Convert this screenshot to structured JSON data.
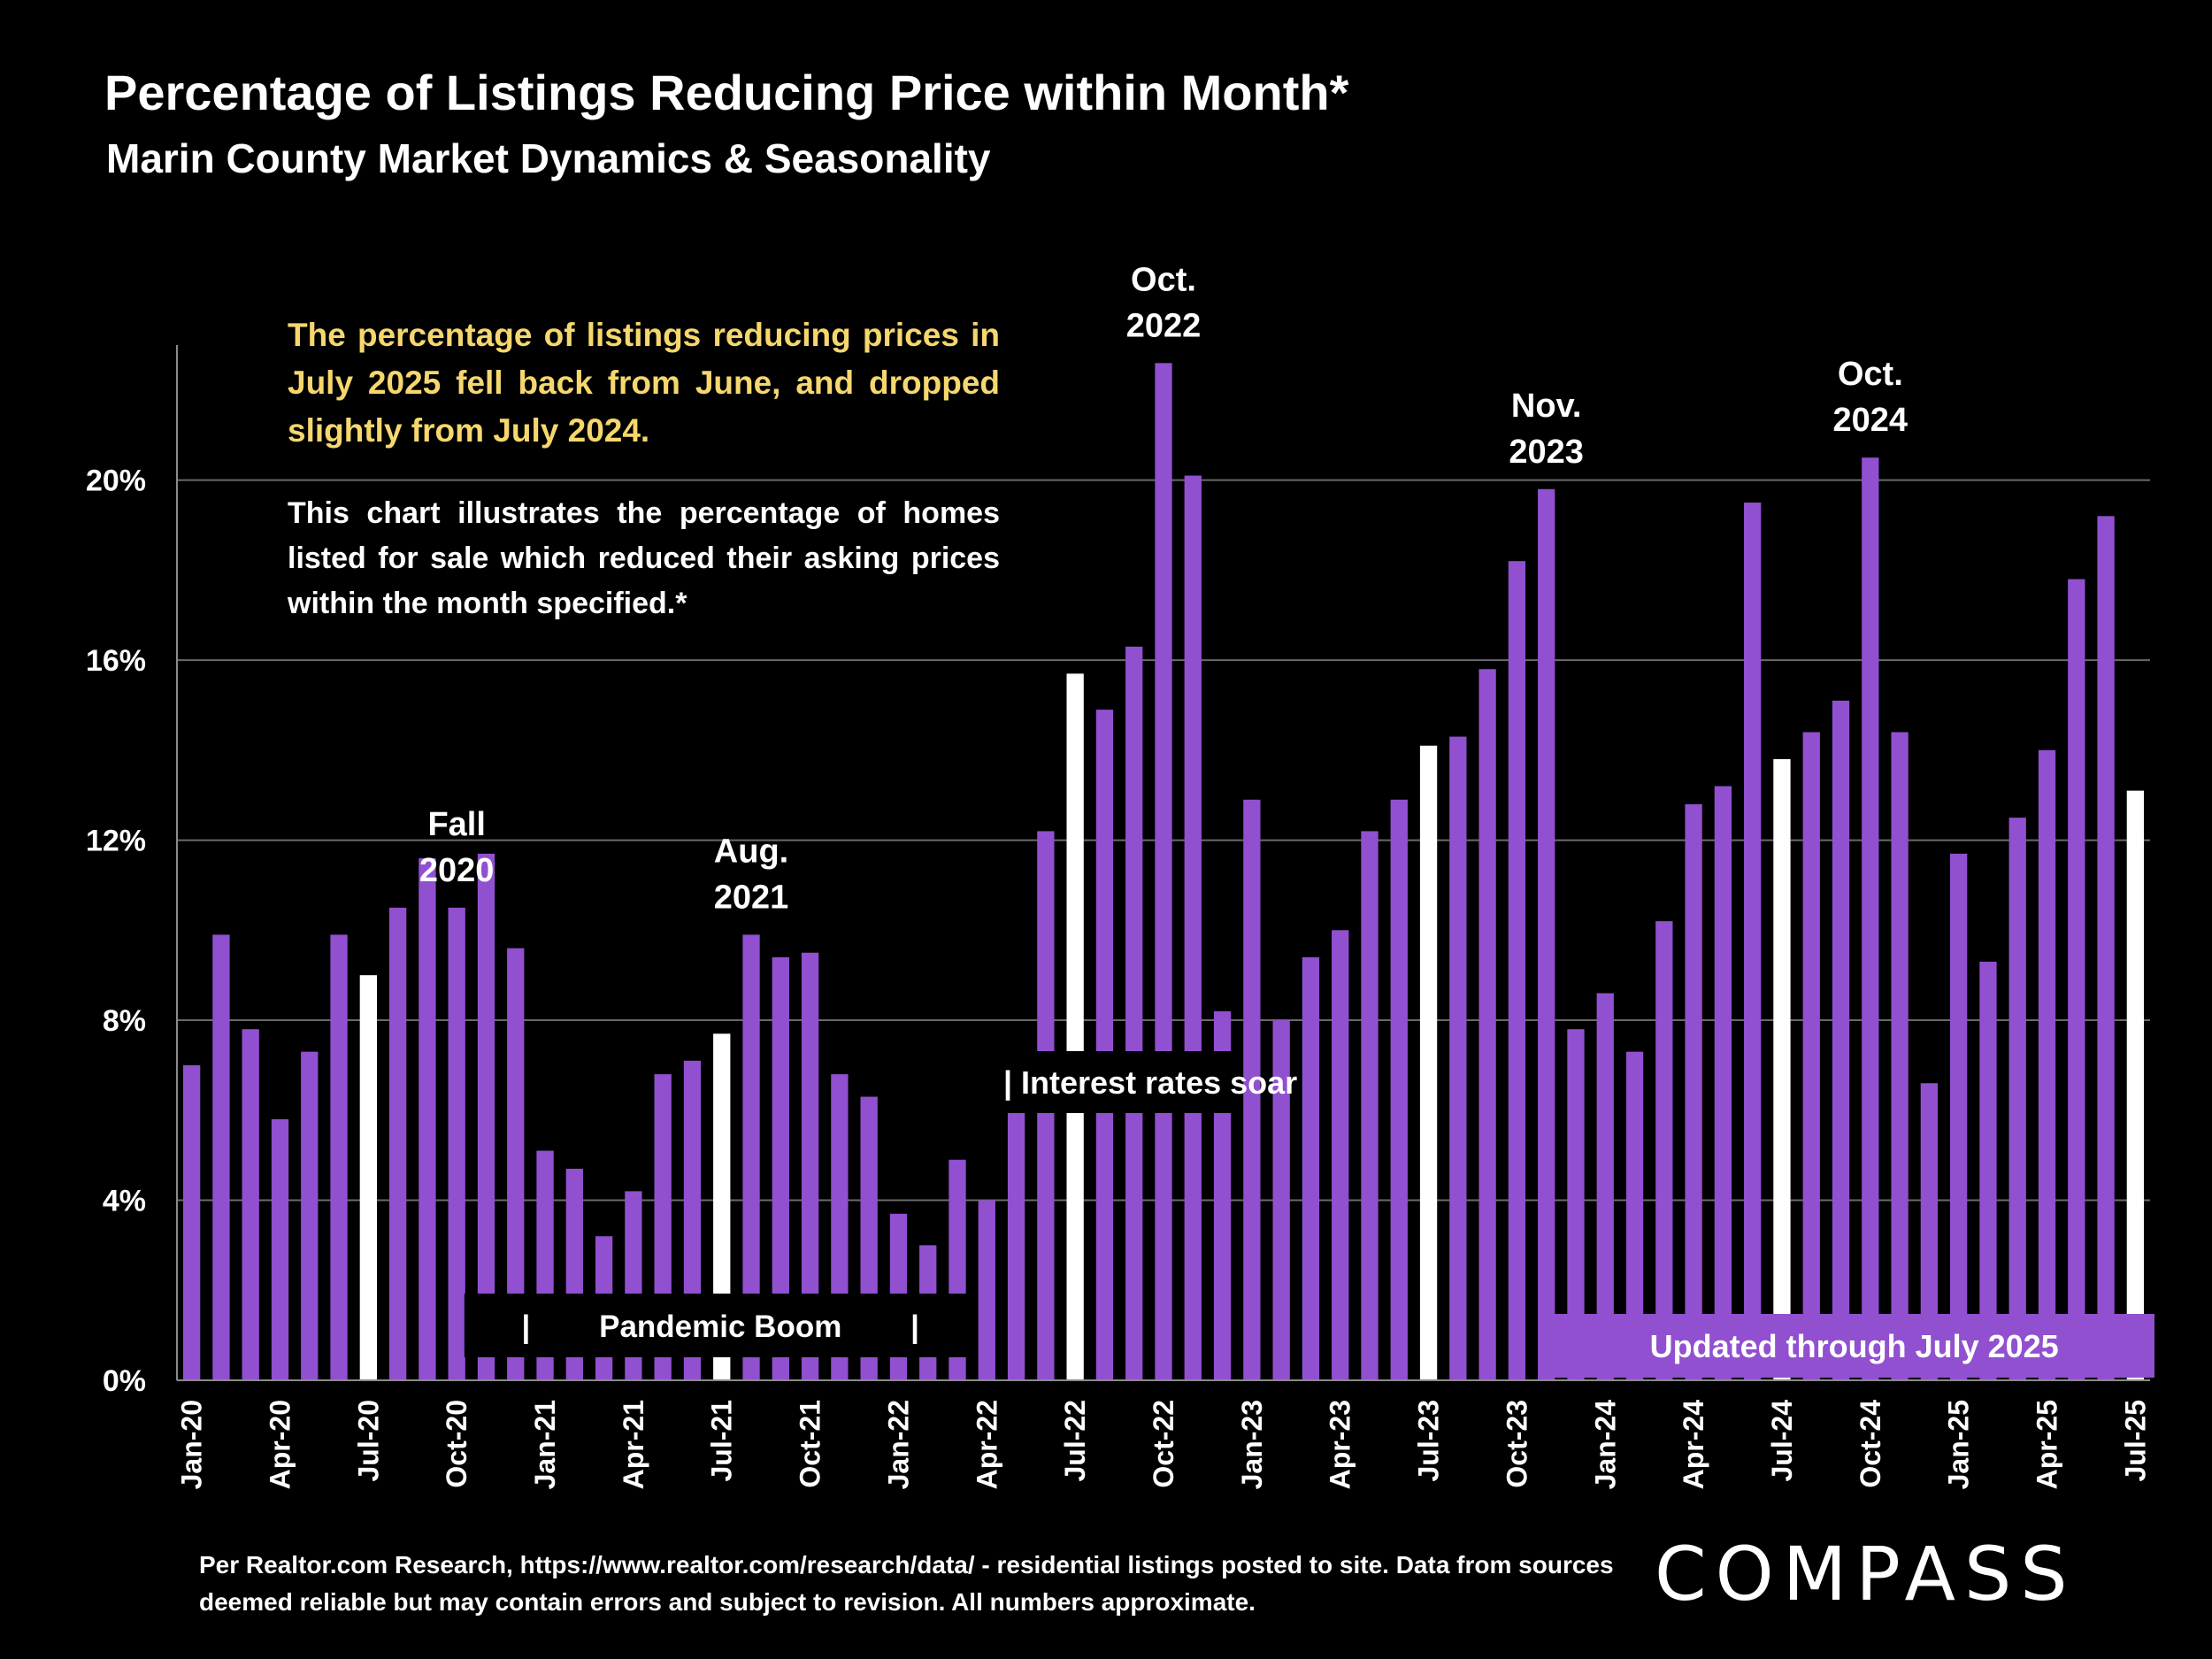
{
  "header": {
    "title": "Percentage of Listings Reducing Price within Month*",
    "subtitle": "Marin County Market Dynamics & Seasonality"
  },
  "notes": {
    "highlight": "The percentage of listings reducing prices in July 2025 fell back from June, and dropped slightly from July 2024.",
    "description": "This chart illustrates the percentage of homes listed for sale which reduced their asking prices within the month specified.*"
  },
  "footer": {
    "source": "Per Realtor.com Research, https://www.realtor.com/research/data/ - residential listings posted to site.  Data from sources deemed reliable but may contain errors and subject to revision. All numbers approximate."
  },
  "logo": {
    "text": "COMPASS"
  },
  "chart_data": {
    "type": "bar",
    "title": "Percentage of Listings Reducing Price within Month*",
    "ylabel": "",
    "xlabel": "",
    "ylim": [
      0,
      23
    ],
    "yticks": [
      0,
      4,
      8,
      12,
      16,
      20
    ],
    "ytick_labels": [
      "0%",
      "4%",
      "8%",
      "12%",
      "16%",
      "20%"
    ],
    "grid": true,
    "colors": {
      "bar": "#9150D0",
      "highlight": "#FFFFFF",
      "band": "#9150D0"
    },
    "categories": [
      "Jan-20",
      "Feb-20",
      "Mar-20",
      "Apr-20",
      "May-20",
      "Jun-20",
      "Jul-20",
      "Aug-20",
      "Sep-20",
      "Oct-20",
      "Nov-20",
      "Dec-20",
      "Jan-21",
      "Feb-21",
      "Mar-21",
      "Apr-21",
      "May-21",
      "Jun-21",
      "Jul-21",
      "Aug-21",
      "Sep-21",
      "Oct-21",
      "Nov-21",
      "Dec-21",
      "Jan-22",
      "Feb-22",
      "Mar-22",
      "Apr-22",
      "May-22",
      "Jun-22",
      "Jul-22",
      "Aug-22",
      "Sep-22",
      "Oct-22",
      "Nov-22",
      "Dec-22",
      "Jan-23",
      "Feb-23",
      "Mar-23",
      "Apr-23",
      "May-23",
      "Jun-23",
      "Jul-23",
      "Aug-23",
      "Sep-23",
      "Oct-23",
      "Nov-23",
      "Dec-23",
      "Jan-24",
      "Feb-24",
      "Mar-24",
      "Apr-24",
      "May-24",
      "Jun-24",
      "Jul-24",
      "Aug-24",
      "Sep-24",
      "Oct-24",
      "Nov-24",
      "Dec-24",
      "Jan-25",
      "Feb-25",
      "Mar-25",
      "Apr-25",
      "May-25",
      "Jun-25",
      "Jul-25"
    ],
    "values": [
      7.0,
      9.9,
      7.8,
      5.8,
      7.3,
      9.9,
      9.0,
      10.5,
      11.6,
      10.5,
      11.7,
      9.6,
      5.1,
      4.7,
      3.2,
      4.2,
      6.8,
      7.1,
      7.7,
      9.9,
      9.4,
      9.5,
      6.8,
      6.3,
      3.7,
      3.0,
      4.9,
      4.0,
      6.5,
      12.2,
      15.7,
      14.9,
      16.3,
      22.6,
      20.1,
      8.2,
      12.9,
      8.0,
      9.4,
      10.0,
      12.2,
      12.9,
      14.1,
      14.3,
      15.8,
      18.2,
      19.8,
      7.8,
      8.6,
      7.3,
      10.2,
      12.8,
      13.2,
      19.5,
      13.8,
      14.4,
      15.1,
      20.5,
      14.4,
      6.6,
      11.7,
      9.3,
      12.5,
      14.0,
      17.8,
      19.2,
      13.1
    ],
    "highlighted": [
      "Jul-20",
      "Jul-21",
      "Jul-22",
      "Jul-23",
      "Jul-24",
      "Jul-25"
    ],
    "shown_ticks": [
      "Jan-20",
      "Apr-20",
      "Jul-20",
      "Oct-20",
      "Jan-21",
      "Apr-21",
      "Jul-21",
      "Oct-21",
      "Jan-22",
      "Apr-22",
      "Jul-22",
      "Oct-22",
      "Jan-23",
      "Apr-23",
      "Jul-23",
      "Oct-23",
      "Jan-24",
      "Apr-24",
      "Jul-24",
      "Oct-24",
      "Jan-25",
      "Apr-25",
      "Jul-25"
    ],
    "annotations": [
      {
        "category": "Oct-20",
        "lines": [
          "Fall",
          "2020"
        ]
      },
      {
        "category": "Aug-21",
        "lines": [
          "Aug.",
          "2021"
        ]
      },
      {
        "category": "Oct-22",
        "lines": [
          "Oct.",
          "2022"
        ]
      },
      {
        "category": "Nov-23",
        "lines": [
          "Nov.",
          "2023"
        ]
      },
      {
        "category": "Oct-24",
        "lines": [
          "Oct.",
          "2024"
        ]
      }
    ],
    "event_labels": [
      {
        "text": "|        Pandemic Boom        |",
        "from": "Nov-20",
        "to": "Mar-22"
      },
      {
        "text": "| Interest rates soar",
        "from": "May-22",
        "to": "Dec-22"
      },
      {
        "text": "Updated through July 2025",
        "from": "Dec-23",
        "to": "Jul-25"
      }
    ]
  }
}
